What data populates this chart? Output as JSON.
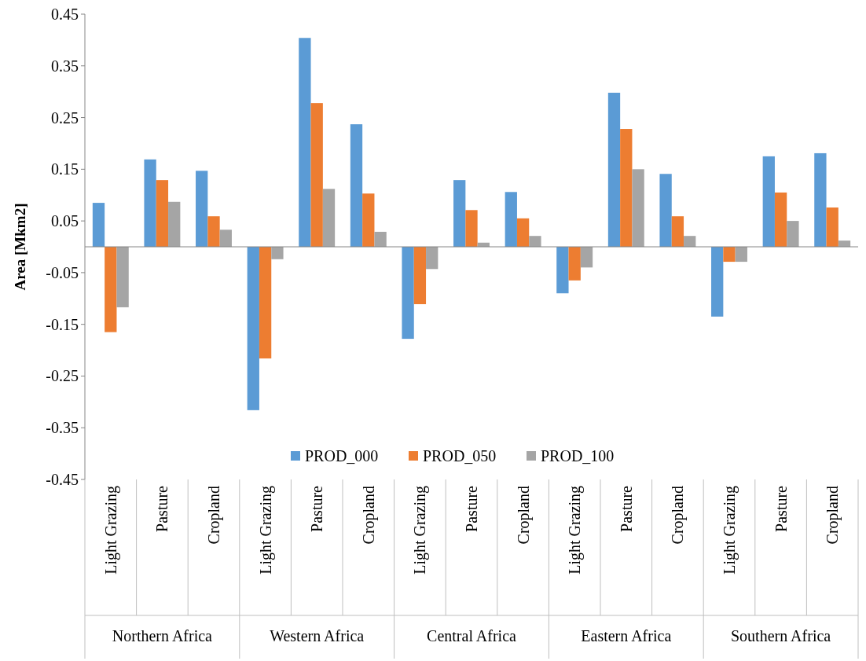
{
  "chart_data": {
    "type": "bar",
    "ylabel": "Area [Mkm2]",
    "categories": [
      "Light Grazing",
      "Pasture",
      "Cropland",
      "Light Grazing",
      "Pasture",
      "Cropland",
      "Light Grazing",
      "Pasture",
      "Cropland",
      "Light Grazing",
      "Pasture",
      "Cropland",
      "Light Grazing",
      "Pasture",
      "Cropland"
    ],
    "annotations": [
      "Northern Africa",
      "Western Africa",
      "Central Africa",
      "Eastern Africa",
      "Southern Africa"
    ],
    "series": [
      {
        "name": "PROD_000",
        "color": "#5b9bd5",
        "values": [
          0.085,
          0.169,
          0.147,
          -0.316,
          0.404,
          0.237,
          -0.178,
          0.129,
          0.106,
          -0.09,
          0.298,
          0.141,
          -0.135,
          0.175,
          0.181
        ]
      },
      {
        "name": "PROD_050",
        "color": "#ed7d31",
        "values": [
          -0.165,
          0.129,
          0.059,
          -0.216,
          0.278,
          0.103,
          -0.111,
          0.071,
          0.055,
          -0.065,
          0.228,
          0.059,
          -0.029,
          0.105,
          0.076
        ]
      },
      {
        "name": "PROD_100",
        "color": "#a5a5a5",
        "values": [
          -0.117,
          0.087,
          0.033,
          -0.024,
          0.112,
          0.029,
          -0.043,
          0.008,
          0.021,
          -0.04,
          0.15,
          0.021,
          -0.029,
          0.05,
          0.012
        ]
      }
    ],
    "ylim": [
      -0.45,
      0.45
    ],
    "yticks": [
      {
        "value": -0.45,
        "label": "-0.45"
      },
      {
        "value": -0.35,
        "label": "-0.35"
      },
      {
        "value": -0.25,
        "label": "-0.25"
      },
      {
        "value": -0.15,
        "label": "-0.15"
      },
      {
        "value": -0.05,
        "label": "-0.05"
      },
      {
        "value": 0.05,
        "label": "0.05"
      },
      {
        "value": 0.15,
        "label": "0.15"
      },
      {
        "value": 0.25,
        "label": "0.25"
      },
      {
        "value": 0.35,
        "label": "0.35"
      },
      {
        "value": 0.45,
        "label": "0.45"
      }
    ],
    "grid": false,
    "legend": "bottom"
  }
}
